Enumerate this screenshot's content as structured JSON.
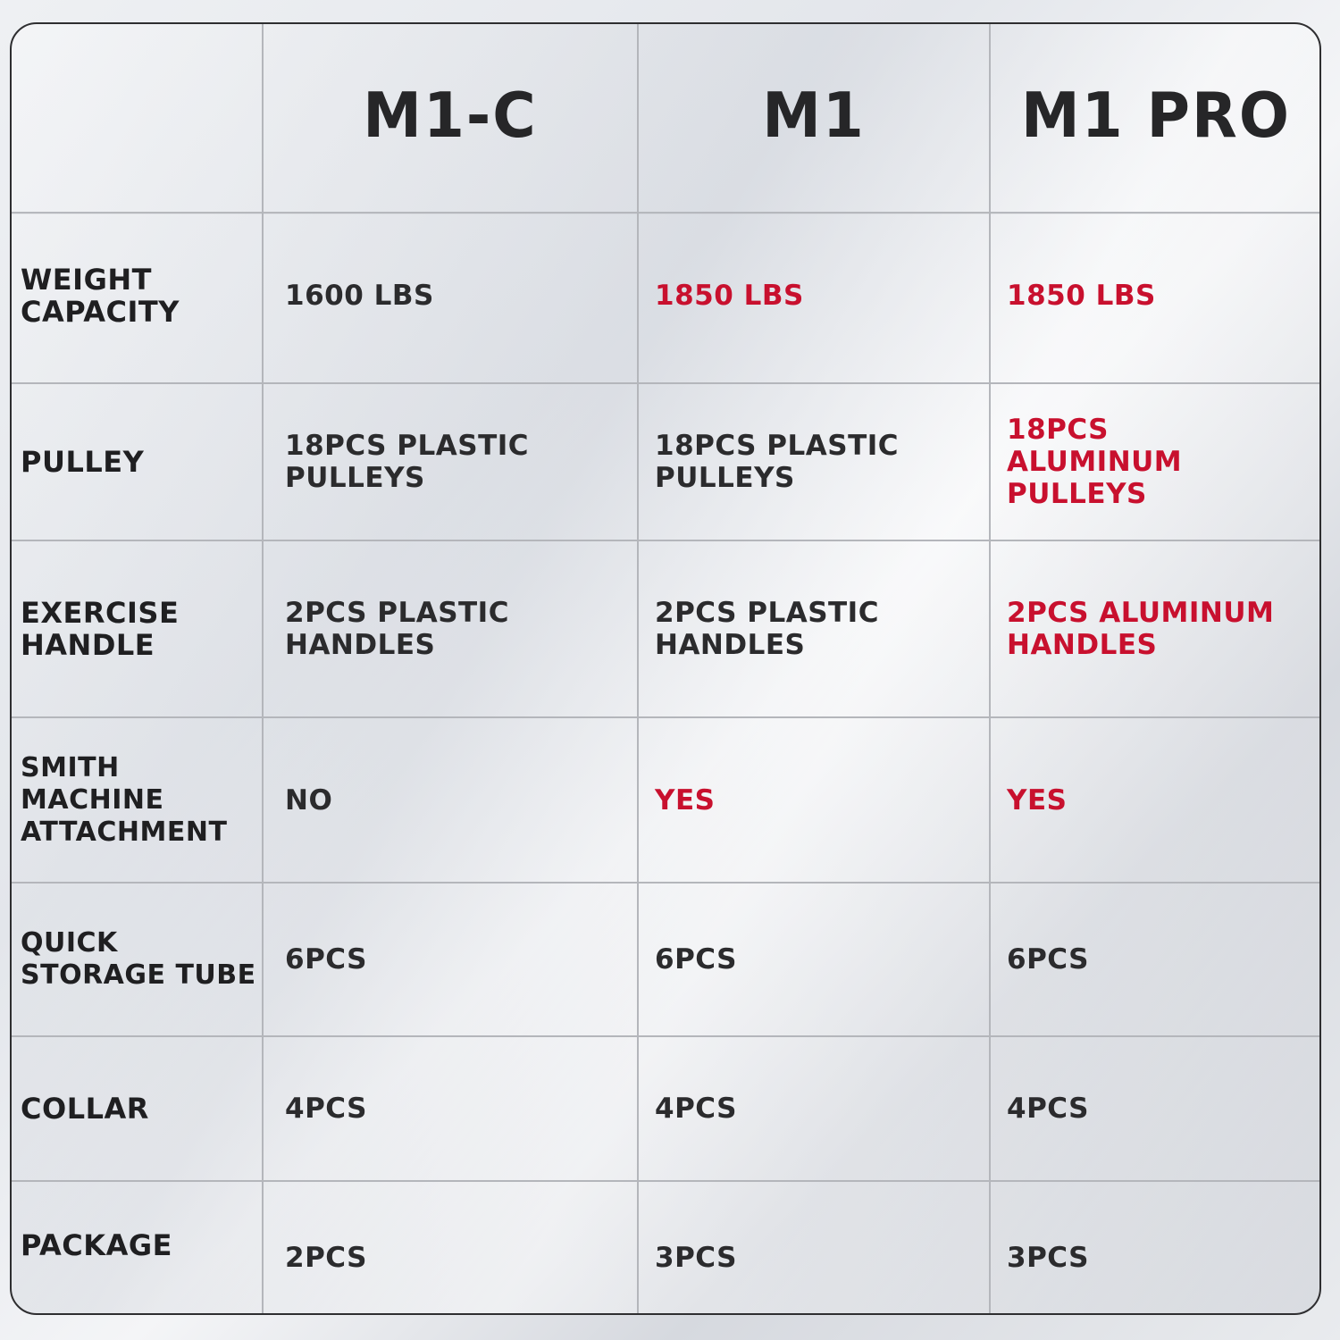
{
  "columns": [
    "",
    "M1-C",
    "M1",
    "M1 PRO"
  ],
  "rows": [
    {
      "label": "WEIGHT\nCAPACITY",
      "values": [
        "1600 LBS",
        "1850 LBS",
        "1850 LBS"
      ]
    },
    {
      "label": "PULLEY",
      "values": [
        "18PCS PLASTIC\nPULLEYS",
        "18PCS PLASTIC\nPULLEYS",
        "18PCS\nALUMINUM PULLEYS"
      ]
    },
    {
      "label": "EXERCISE\nHANDLE",
      "values": [
        "2PCS PLASTIC\nHANDLES",
        "2PCS PLASTIC\nHANDLES",
        "2PCS ALUMINUM\nHANDLES"
      ]
    },
    {
      "label": "SMITH MACHINE\nATTACHMENT",
      "values": [
        "NO",
        "YES",
        "YES"
      ]
    },
    {
      "label": "QUICK\nSTORAGE TUBE",
      "values": [
        "6PCS",
        "6PCS",
        "6PCS"
      ]
    },
    {
      "label": "COLLAR",
      "values": [
        "4PCS",
        "4PCS",
        "4PCS"
      ]
    },
    {
      "label": "PACKAGE",
      "values": [
        "2PCS",
        "3PCS",
        "3PCS"
      ]
    }
  ],
  "colors": {
    "highlight": "#c8102e",
    "text": "#2b2b2d",
    "grid": "#b4b6bb",
    "frame": "#2e2e30"
  }
}
